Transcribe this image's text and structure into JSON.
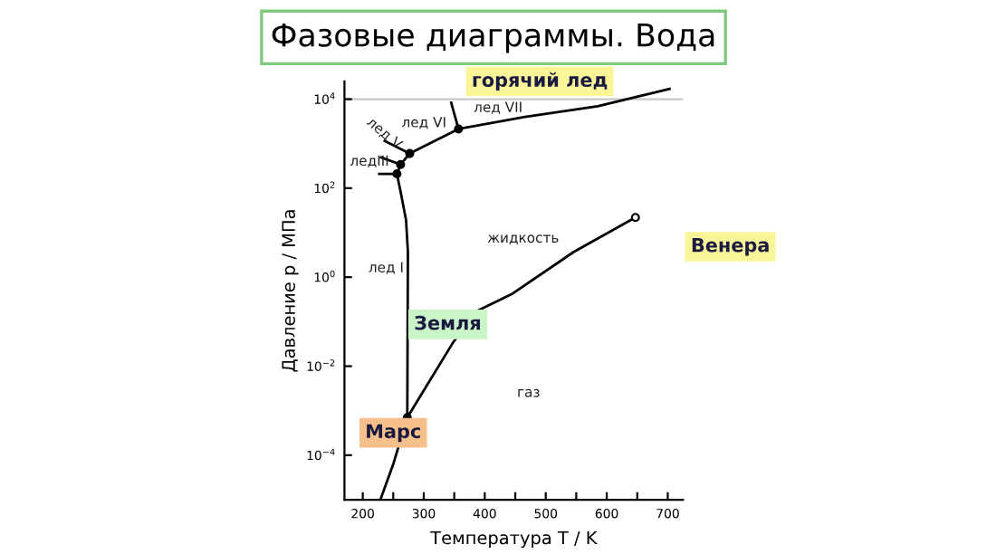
{
  "chart_data": {
    "type": "line",
    "title": "Фазовые диаграммы. Вода",
    "xlabel": "Температура T / K",
    "ylabel": "Давление p / МПа",
    "log": "y",
    "xlim": [
      170,
      725
    ],
    "ylim": [
      1e-05,
      25000
    ],
    "xticks": [
      200,
      {
        "value": 250,
        "label": null
      },
      300,
      {
        "value": 350,
        "label": null
      },
      400,
      {
        "value": 450,
        "label": null
      },
      500,
      {
        "value": 550,
        "label": null
      },
      600,
      {
        "value": 650,
        "label": null
      },
      700
    ],
    "yticks": [
      {
        "value": 0.0001,
        "label": "10$^{−4}$"
      },
      {
        "value": 0.01,
        "label": "10$^{−2}$"
      },
      {
        "value": 1,
        "label": "10$^{0}$"
      },
      {
        "value": 100,
        "label": "10$^{2}$"
      },
      {
        "value": 10000,
        "label": "10$^{4}$"
      }
    ],
    "grid": false,
    "legend": false,
    "marker": "none",
    "line_style": "solid",
    "ref_lines": [
      {
        "axis": "y",
        "value": 10000,
        "color": "#c8c8c8"
      }
    ],
    "series": [
      {
        "color": "#000000",
        "x": [
          230,
          250,
          273,
          348,
          386,
          446,
          546,
          647
        ],
        "values": [
          1.1e-05,
          6.3e-05,
          0.0007,
          0.034,
          0.17,
          0.43,
          3.7,
          22
        ]
      },
      {
        "color": "#000000",
        "x": [
          273,
          274,
          271,
          262,
          256
        ],
        "values": [
          0.0007,
          3.7,
          19,
          83,
          210
        ]
      },
      {
        "color": "#000000",
        "x": [
          227,
          256
        ],
        "values": [
          210,
          210
        ]
      },
      {
        "color": "#000000",
        "x": [
          230,
          262
        ],
        "values": [
          490,
          340
        ]
      },
      {
        "color": "#000000",
        "x": [
          236,
          277
        ],
        "values": [
          1150,
          600
        ]
      },
      {
        "color": "#000000",
        "x": [
          256,
          262,
          277,
          357,
          466,
          585,
          703
        ],
        "values": [
          210,
          340,
          600,
          2140,
          4000,
          6900,
          17000
        ]
      },
      {
        "color": "#000000",
        "x": [
          345,
          357
        ],
        "values": [
          8300,
          2140
        ]
      },
      {
        "type": "scatter",
        "color": "#000000",
        "marker": "circle",
        "x": [
          273,
          256,
          262,
          277,
          357
        ],
        "values": [
          0.0007,
          210,
          340,
          600,
          2140
        ]
      },
      {
        "type": "scatter",
        "color": "#ffffff",
        "marker": "circle",
        "x": [
          647
        ],
        "values": [
          22
        ]
      }
    ],
    "annotations": [
      "горячий лед",
      "Венера",
      "Земля",
      "Марс",
      "жидкость",
      "лед I",
      "газ",
      "лед VI",
      "лед VII",
      "лед V",
      "ледIII"
    ]
  }
}
